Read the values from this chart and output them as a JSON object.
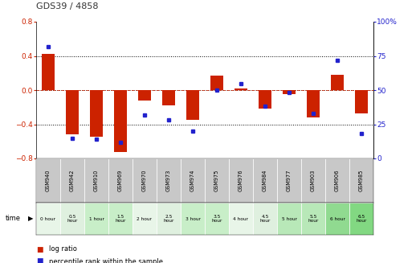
{
  "title": "GDS39 / 4858",
  "samples": [
    "GSM940",
    "GSM942",
    "GSM910",
    "GSM969",
    "GSM970",
    "GSM973",
    "GSM974",
    "GSM975",
    "GSM976",
    "GSM984",
    "GSM977",
    "GSM903",
    "GSM906",
    "GSM985"
  ],
  "time_labels": [
    "0 hour",
    "0.5\nhour",
    "1 hour",
    "1.5\nhour",
    "2 hour",
    "2.5\nhour",
    "3 hour",
    "3.5\nhour",
    "4 hour",
    "4.5\nhour",
    "5 hour",
    "5.5\nhour",
    "6 hour",
    "6.5\nhour"
  ],
  "log_ratio": [
    0.42,
    -0.52,
    -0.55,
    -0.72,
    -0.12,
    -0.18,
    -0.35,
    0.17,
    0.02,
    -0.22,
    -0.05,
    -0.32,
    0.18,
    -0.27
  ],
  "percentile": [
    82,
    15,
    14,
    12,
    32,
    28,
    20,
    50,
    55,
    38,
    48,
    33,
    72,
    18
  ],
  "ylim_left": [
    -0.8,
    0.8
  ],
  "ylim_right": [
    0,
    100
  ],
  "yticks_left": [
    -0.8,
    -0.4,
    0.0,
    0.4,
    0.8
  ],
  "yticks_right": [
    0,
    25,
    50,
    75,
    100
  ],
  "hline_dotted": [
    0.4,
    0.0,
    -0.4
  ],
  "bar_color": "#cc2200",
  "dot_color": "#2222cc",
  "bg_color": "#ffffff",
  "plot_bg": "#ffffff",
  "title_color": "#333333",
  "left_axis_color": "#cc2200",
  "right_axis_color": "#2222cc",
  "time_bg_colors": [
    "#e8f5e8",
    "#dff0df",
    "#c8eec8",
    "#c8eec8",
    "#e8f5e8",
    "#dff0df",
    "#c8eec8",
    "#c8eec8",
    "#e8f5e8",
    "#dff0df",
    "#b8e8b8",
    "#b8e8b8",
    "#90da90",
    "#82d882"
  ],
  "sample_bg_color": "#c8c8c8",
  "legend_log_color": "#cc2200",
  "legend_pct_color": "#2222cc"
}
